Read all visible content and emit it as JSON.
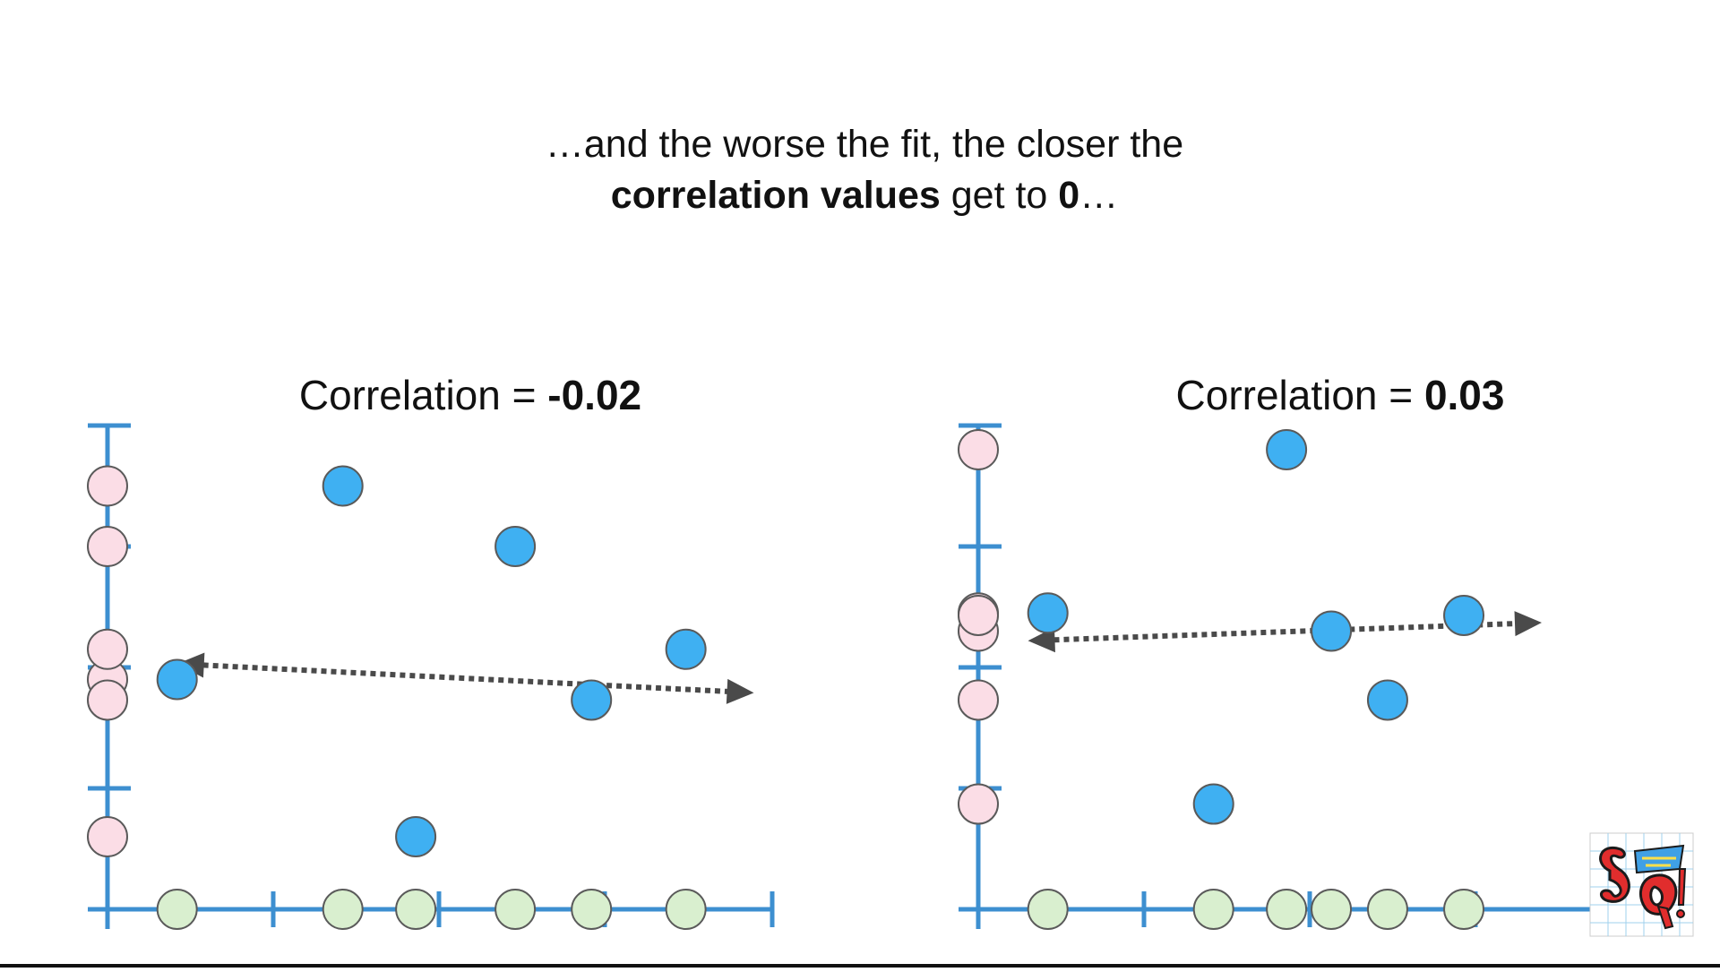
{
  "caption": {
    "line1": "…and the worse the fit, the closer the",
    "line2_bold": "correlation values",
    "line2_mid": " get to ",
    "line2_value": "0",
    "line2_end": "…"
  },
  "colors": {
    "axis": "#3d8fd0",
    "data_point": "#3fb0f2",
    "y_projection": "#fbdde6",
    "x_projection": "#d9efcf",
    "trend_line": "#4a4a4a"
  },
  "chart_data": [
    {
      "type": "scatter",
      "title_prefix": "Correlation = ",
      "title_value": "-0.02",
      "xlabel": "",
      "ylabel": "",
      "xlim": [
        0,
        4
      ],
      "ylim": [
        0,
        4
      ],
      "x_ticks": [
        1,
        2,
        3,
        4
      ],
      "y_ticks": [
        1,
        2,
        3
      ],
      "points": [
        {
          "x": 0.42,
          "y": 1.9
        },
        {
          "x": 1.42,
          "y": 3.5
        },
        {
          "x": 1.86,
          "y": 0.6
        },
        {
          "x": 2.46,
          "y": 3.0
        },
        {
          "x": 2.92,
          "y": 1.73
        },
        {
          "x": 3.49,
          "y": 2.15
        }
      ],
      "trend": {
        "x1": 0.42,
        "y1": 2.03,
        "x2": 3.9,
        "y2": 1.79
      }
    },
    {
      "type": "scatter",
      "title_prefix": "Correlation = ",
      "title_value": "0.03",
      "xlabel": "",
      "ylabel": "",
      "xlim": [
        0,
        4
      ],
      "ylim": [
        0,
        4
      ],
      "x_ticks": [
        1,
        2,
        3
      ],
      "y_ticks": [
        1,
        2,
        3
      ],
      "points": [
        {
          "x": 0.42,
          "y": 2.45
        },
        {
          "x": 1.42,
          "y": 0.87
        },
        {
          "x": 1.86,
          "y": 3.8
        },
        {
          "x": 2.13,
          "y": 2.3
        },
        {
          "x": 2.47,
          "y": 1.73
        },
        {
          "x": 2.93,
          "y": 2.43
        }
      ],
      "trend": {
        "x1": 0.3,
        "y1": 2.22,
        "x2": 3.4,
        "y2": 2.37
      }
    }
  ]
}
